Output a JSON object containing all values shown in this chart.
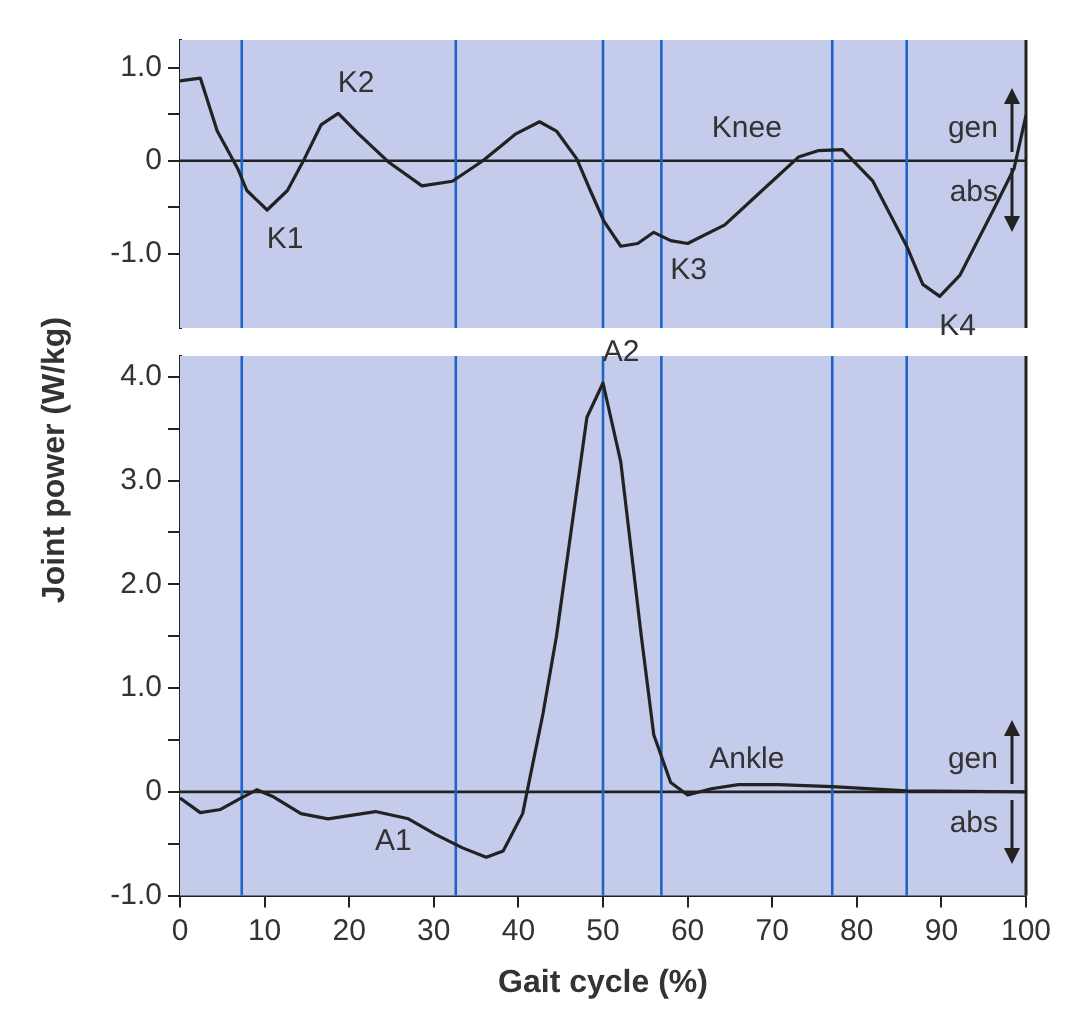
{
  "chart_data": [
    {
      "type": "line",
      "x": [
        0,
        2.4,
        4.4,
        6.8,
        7.9,
        10.3,
        12.7,
        14.7,
        16.7,
        18.7,
        21.1,
        24.6,
        28.6,
        32.2,
        35.8,
        39.7,
        42.5,
        44.5,
        46.9,
        48.5,
        50.1,
        52.1,
        54.1,
        56,
        58,
        60,
        64.4,
        70,
        73.1,
        75.5,
        78.3,
        81.9,
        85.9,
        87.8,
        89.8,
        92.2,
        96.2,
        98.6,
        100
      ],
      "series": [
        {
          "name": "Knee",
          "color": "#222222",
          "values": [
            0.86,
            0.89,
            0.32,
            -0.08,
            -0.32,
            -0.53,
            -0.32,
            0.02,
            0.39,
            0.51,
            0.29,
            -0.01,
            -0.27,
            -0.22,
            0,
            0.29,
            0.42,
            0.32,
            0.02,
            -0.32,
            -0.65,
            -0.92,
            -0.89,
            -0.77,
            -0.86,
            -0.89,
            -0.69,
            -0.22,
            0.04,
            0.11,
            0.12,
            -0.22,
            -0.92,
            -1.33,
            -1.46,
            -1.23,
            -0.52,
            -0.08,
            0.49
          ]
        }
      ],
      "marker": "none",
      "tick_labels": "y",
      "xlim": [
        0,
        100
      ],
      "ylim": [
        -1.8,
        1.3
      ],
      "yticks": [
        {
          "value": 1,
          "label": "1.0"
        },
        {
          "value": 0.5,
          "label": null
        },
        0,
        {
          "value": -0.5,
          "label": null
        },
        {
          "value": -1,
          "label": "-1.0"
        }
      ],
      "ref_lines": [
        {
          "axis": "y",
          "value": 0,
          "color": "#222222"
        },
        {
          "axis": "x",
          "value": 7.3,
          "color": "#1f64c8"
        },
        {
          "axis": "x",
          "value": 32.6,
          "color": "#1f64c8"
        },
        {
          "axis": "x",
          "value": 50,
          "color": "#1f64c8"
        },
        {
          "axis": "x",
          "value": 56.9,
          "color": "#1f64c8"
        },
        {
          "axis": "x",
          "value": 77.1,
          "color": "#1f64c8"
        },
        {
          "axis": "x",
          "value": 85.9,
          "color": "#1f64c8"
        }
      ],
      "annotations": [
        {
          "text": "K1",
          "x": 10.3,
          "y": -0.53
        },
        {
          "text": "K2",
          "x": 18.7,
          "y": 0.51
        },
        {
          "text": "K3",
          "x": 58,
          "y": -0.86
        },
        {
          "text": "K4",
          "x": 89.8,
          "y": -1.46
        },
        "gen",
        "abs"
      ]
    },
    {
      "type": "line",
      "x": [
        0,
        2.4,
        4.8,
        7.2,
        9.1,
        11.1,
        14.3,
        17.5,
        23.1,
        27,
        30.2,
        33.4,
        36.2,
        38.2,
        40.5,
        42.9,
        44.5,
        48.1,
        50,
        52.1,
        54.5,
        56,
        58,
        60,
        62.8,
        66,
        70.7,
        77.1,
        85.9,
        100
      ],
      "series": [
        {
          "name": "Ankle",
          "color": "#222222",
          "values": [
            -0.06,
            -0.2,
            -0.17,
            -0.06,
            0.02,
            -0.05,
            -0.21,
            -0.26,
            -0.19,
            -0.26,
            -0.41,
            -0.54,
            -0.63,
            -0.57,
            -0.21,
            0.75,
            1.5,
            3.61,
            3.94,
            3.18,
            1.52,
            0.55,
            0.09,
            -0.03,
            0.03,
            0.07,
            0.07,
            0.05,
            0.01,
            0
          ]
        }
      ],
      "marker": "none",
      "xlabel": "Gait cycle (%)",
      "ylabel": "Joint power (W/kg)",
      "xlim": [
        0,
        100
      ],
      "ylim": [
        -1,
        4.2
      ],
      "xticks": [
        0,
        10,
        20,
        30,
        40,
        50,
        60,
        70,
        80,
        90,
        100
      ],
      "yticks": [
        {
          "value": 4,
          "label": "4.0"
        },
        {
          "value": 3.5,
          "label": null
        },
        {
          "value": 3,
          "label": "3.0"
        },
        {
          "value": 2.5,
          "label": null
        },
        {
          "value": 2,
          "label": "2.0"
        },
        {
          "value": 1.5,
          "label": null
        },
        {
          "value": 1,
          "label": "1.0"
        },
        {
          "value": 0.5,
          "label": null
        },
        0,
        {
          "value": -0.5,
          "label": null
        },
        {
          "value": -1,
          "label": "-1.0"
        }
      ],
      "ref_lines": [
        {
          "axis": "y",
          "value": 0,
          "color": "#222222"
        },
        {
          "axis": "x",
          "value": 7.3,
          "color": "#1f64c8"
        },
        {
          "axis": "x",
          "value": 32.6,
          "color": "#1f64c8"
        },
        {
          "axis": "x",
          "value": 50,
          "color": "#1f64c8"
        },
        {
          "axis": "x",
          "value": 56.9,
          "color": "#1f64c8"
        },
        {
          "axis": "x",
          "value": 77.1,
          "color": "#1f64c8"
        },
        {
          "axis": "x",
          "value": 85.9,
          "color": "#1f64c8"
        }
      ],
      "annotations": [
        {
          "text": "A1",
          "x": 23.1,
          "y": -0.19
        },
        {
          "text": "A2",
          "x": 50,
          "y": 3.94
        },
        "gen",
        "abs"
      ]
    }
  ]
}
